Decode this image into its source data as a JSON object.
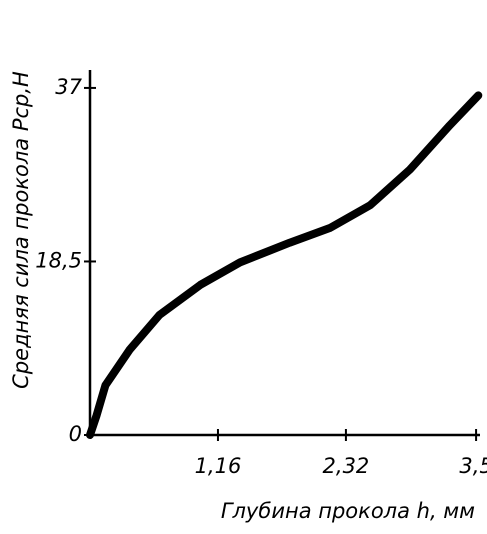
{
  "chart_data": {
    "type": "line",
    "x_label": "Глубина прокола h, мм",
    "y_label": "Средняя сила прокола Pср,Н",
    "x": [
      0,
      0.06,
      0.14,
      0.36,
      0.63,
      1.0,
      1.36,
      1.81,
      2.18,
      2.54,
      2.9,
      3.26,
      3.52
    ],
    "series": [
      {
        "color": "#000000",
        "values": [
          0,
          2.1,
          5.3,
          9.1,
          12.8,
          16.0,
          18.4,
          20.5,
          22.1,
          24.5,
          28.3,
          33.0,
          36.2
        ]
      }
    ],
    "xlim": [
      0,
      3.55
    ],
    "ylim": [
      0,
      38.4
    ],
    "xticks": [
      {
        "value": 1.16,
        "label": "1,16"
      },
      {
        "value": 2.32,
        "label": "2,32"
      },
      {
        "value": 3.5,
        "label": "3,5"
      }
    ],
    "yticks": [
      0,
      {
        "value": 18.5,
        "label": "18,5"
      },
      37
    ]
  }
}
